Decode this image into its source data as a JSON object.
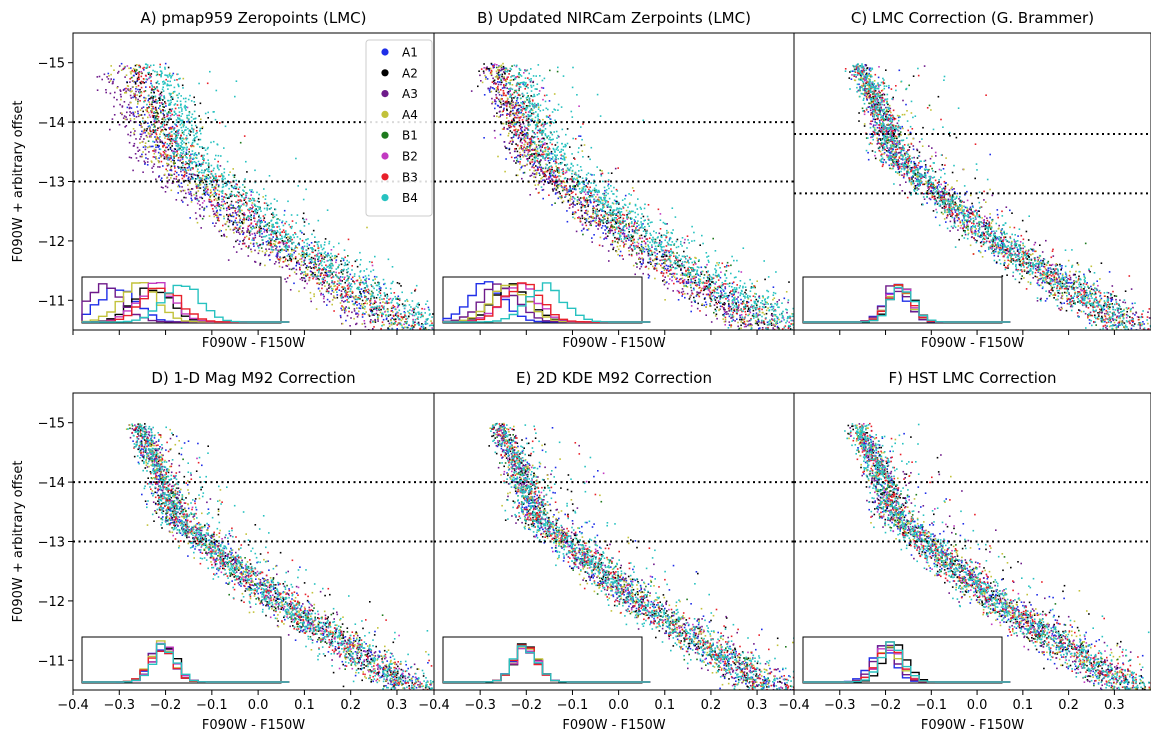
{
  "chart_data": {
    "type": "scatter",
    "layout": "2x3 grid of color-magnitude diagrams, shared axes",
    "y_axis_inverted": true,
    "xlim": [
      -0.4,
      0.38
    ],
    "ylim": [
      -10.5,
      -15.5
    ],
    "xticks": [
      -0.4,
      -0.3,
      -0.2,
      -0.1,
      0.0,
      0.1,
      0.2,
      0.3
    ],
    "xtick_labels": [
      "−0.4",
      "−0.3",
      "−0.2",
      "−0.1",
      "0.0",
      "0.1",
      "0.2",
      "0.3"
    ],
    "yticks": [
      -15,
      -14,
      -13,
      -12,
      -11
    ],
    "ytick_labels": [
      "−15",
      "−14",
      "−13",
      "−12",
      "−11"
    ],
    "xlabel": "F090W - F150W",
    "ylabel": "F090W + arbitrary offset",
    "legend": {
      "placement": "top-right of panel A",
      "entries": [
        {
          "name": "A1",
          "color": "#1f2ee8"
        },
        {
          "name": "A2",
          "color": "#000000"
        },
        {
          "name": "A3",
          "color": "#6e1a8a"
        },
        {
          "name": "A4",
          "color": "#c2c23a"
        },
        {
          "name": "B1",
          "color": "#1e7a1e"
        },
        {
          "name": "B2",
          "color": "#c23ac2"
        },
        {
          "name": "B3",
          "color": "#e8202a"
        },
        {
          "name": "B4",
          "color": "#27c2c0"
        }
      ]
    },
    "panels": [
      {
        "title": "A) pmap959 Zeropoints (LMC)",
        "dotted_lines_y": [
          -14.0,
          -13.0
        ],
        "series_color_offsets": [
          {
            "name": "A1",
            "offset": -0.02
          },
          {
            "name": "A2",
            "offset": 0.0
          },
          {
            "name": "A3",
            "offset": -0.06
          },
          {
            "name": "A4",
            "offset": -0.03
          },
          {
            "name": "B1",
            "offset": 0.0
          },
          {
            "name": "B2",
            "offset": 0.0
          },
          {
            "name": "B3",
            "offset": 0.0
          },
          {
            "name": "B4",
            "offset": 0.035
          }
        ],
        "inset_histogram_peaks": [
          {
            "name": "A1",
            "peak": -0.29
          },
          {
            "name": "A2",
            "peak": -0.19
          },
          {
            "name": "A3",
            "peak": -0.33
          },
          {
            "name": "A4",
            "peak": -0.23
          },
          {
            "name": "B2",
            "peak": -0.18
          },
          {
            "name": "B3",
            "peak": -0.16
          },
          {
            "name": "B4",
            "peak": -0.1
          }
        ]
      },
      {
        "title": "B) Updated NIRCam Zerpoints (LMC)",
        "dotted_lines_y": [
          -14.0,
          -13.0
        ],
        "series_color_offsets": [
          {
            "name": "A1",
            "offset": -0.02
          },
          {
            "name": "A2",
            "offset": -0.01
          },
          {
            "name": "A3",
            "offset": -0.02
          },
          {
            "name": "A4",
            "offset": -0.015
          },
          {
            "name": "B1",
            "offset": 0.0
          },
          {
            "name": "B2",
            "offset": 0.0
          },
          {
            "name": "B3",
            "offset": 0.0
          },
          {
            "name": "B4",
            "offset": 0.035
          }
        ],
        "inset_histogram_peaks": [
          {
            "name": "A1",
            "peak": -0.27
          },
          {
            "name": "A2",
            "peak": -0.19
          },
          {
            "name": "A3",
            "peak": -0.23
          },
          {
            "name": "A4",
            "peak": -0.2
          },
          {
            "name": "B2",
            "peak": -0.17
          },
          {
            "name": "B3",
            "peak": -0.16
          },
          {
            "name": "B4",
            "peak": -0.09
          }
        ]
      },
      {
        "title": "C) LMC Correction (G. Brammer)",
        "dotted_lines_y": [
          -13.8,
          -12.8
        ],
        "series_color_offsets": [],
        "inset_histogram_peaks": [
          {
            "name": "A1",
            "peak": -0.12
          },
          {
            "name": "A2",
            "peak": -0.1
          },
          {
            "name": "A3",
            "peak": -0.12
          },
          {
            "name": "A4",
            "peak": -0.11
          },
          {
            "name": "B2",
            "peak": -0.11
          },
          {
            "name": "B3",
            "peak": -0.11
          },
          {
            "name": "B4",
            "peak": -0.1
          }
        ]
      },
      {
        "title": "D) 1-D Mag M92 Correction",
        "dotted_lines_y": [
          -14.0,
          -13.0
        ],
        "series_color_offsets": [],
        "inset_histogram_peaks": [
          {
            "name": "A1",
            "peak": -0.16
          },
          {
            "name": "A2",
            "peak": -0.15
          },
          {
            "name": "A3",
            "peak": -0.16
          },
          {
            "name": "A4",
            "peak": -0.16
          },
          {
            "name": "B2",
            "peak": -0.15
          },
          {
            "name": "B3",
            "peak": -0.16
          },
          {
            "name": "B4",
            "peak": -0.15
          }
        ]
      },
      {
        "title": "E) 2D KDE M92 Correction",
        "dotted_lines_y": [
          -14.0,
          -13.0
        ],
        "series_color_offsets": [],
        "inset_histogram_peaks": [
          {
            "name": "A1",
            "peak": -0.15
          },
          {
            "name": "A2",
            "peak": -0.15
          },
          {
            "name": "A3",
            "peak": -0.15
          },
          {
            "name": "A4",
            "peak": -0.15
          },
          {
            "name": "B2",
            "peak": -0.15
          },
          {
            "name": "B3",
            "peak": -0.15
          },
          {
            "name": "B4",
            "peak": -0.15
          }
        ]
      },
      {
        "title": "F) HST LMC Correction",
        "dotted_lines_y": [
          -14.0,
          -13.0
        ],
        "series_color_offsets": [],
        "inset_histogram_peaks": [
          {
            "name": "A1",
            "peak": -0.16
          },
          {
            "name": "A2",
            "peak": -0.12
          },
          {
            "name": "A3",
            "peak": -0.15
          },
          {
            "name": "A4",
            "peak": -0.14
          },
          {
            "name": "B2",
            "peak": -0.14
          },
          {
            "name": "B3",
            "peak": -0.14
          },
          {
            "name": "B4",
            "peak": -0.13
          }
        ]
      }
    ]
  }
}
